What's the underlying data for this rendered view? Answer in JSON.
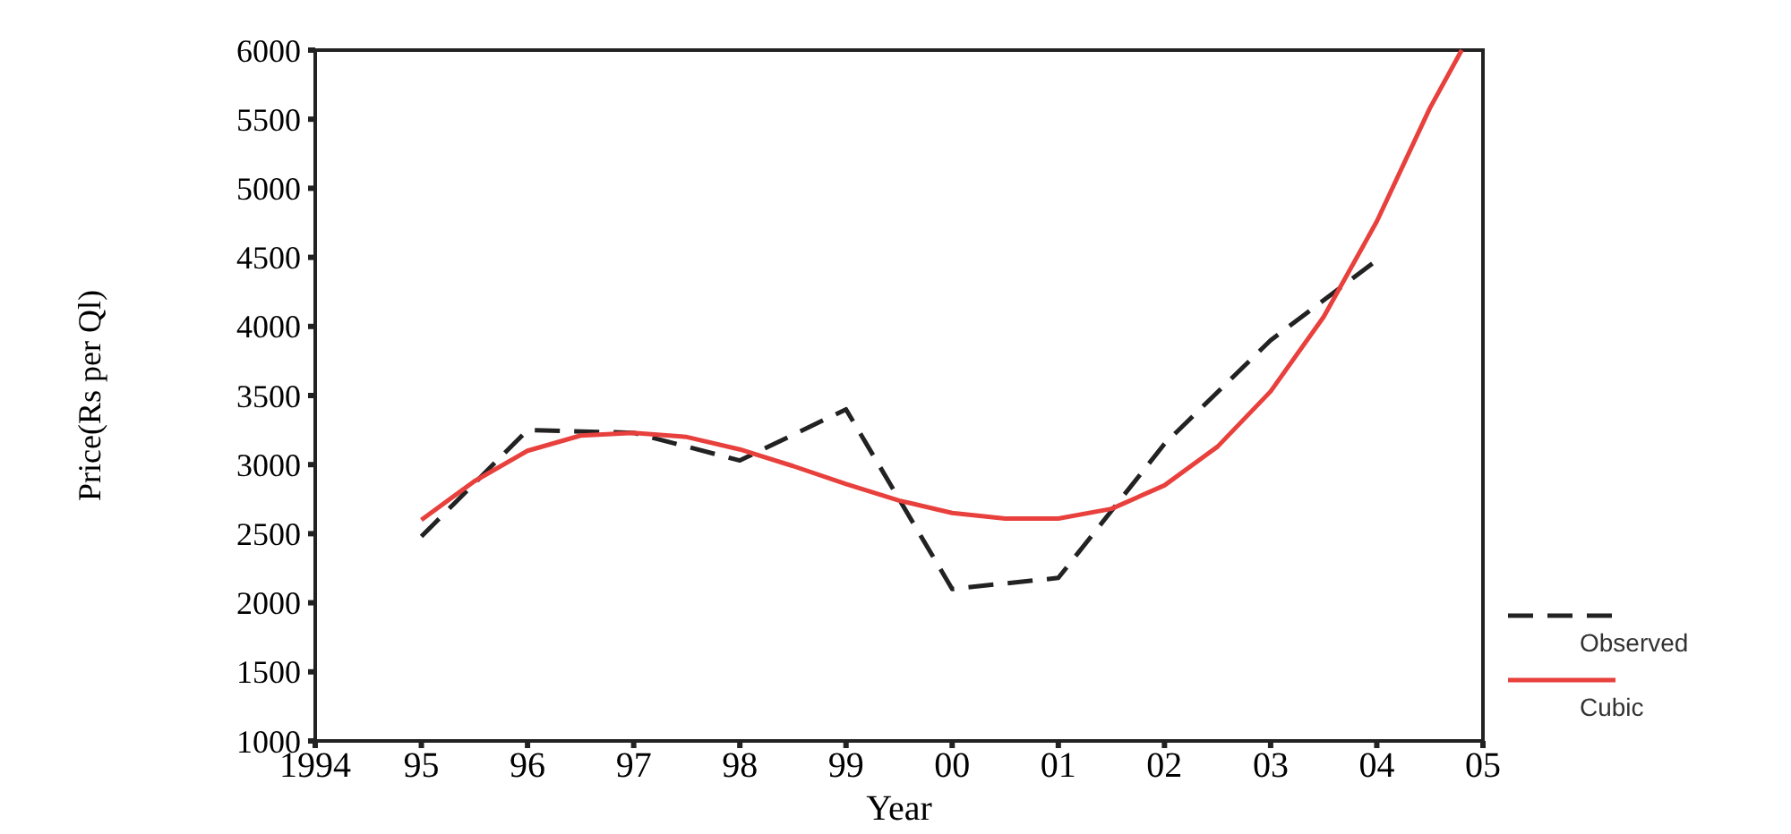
{
  "chart_data": {
    "type": "line",
    "xlabel": "Year",
    "ylabel": "Price(Rs per Ql)",
    "xlim": [
      1994,
      2005
    ],
    "ylim": [
      1000,
      6000
    ],
    "xticks": [
      1994,
      {
        "value": 1995,
        "label": "95"
      },
      {
        "value": 1996,
        "label": "96"
      },
      {
        "value": 1997,
        "label": "97"
      },
      {
        "value": 1998,
        "label": "98"
      },
      {
        "value": 1999,
        "label": "99"
      },
      {
        "value": 2000,
        "label": "00"
      },
      {
        "value": 2001,
        "label": "01"
      },
      {
        "value": 2002,
        "label": "02"
      },
      {
        "value": 2003,
        "label": "03"
      },
      {
        "value": 2004,
        "label": "04"
      },
      {
        "value": 2005,
        "label": "05"
      }
    ],
    "yticks": [
      1000,
      1500,
      2000,
      2500,
      3000,
      3500,
      4000,
      4500,
      5000,
      5500,
      6000
    ],
    "grid": false,
    "legend": "bottom right",
    "series": [
      {
        "name": "Observed",
        "color": "#222222",
        "line_style": "dashed",
        "x": [
          1995,
          1996,
          1997,
          1998,
          1999,
          2000,
          2001,
          2002,
          2003,
          2004
        ],
        "values": [
          2480,
          3250,
          3230,
          3030,
          3400,
          2100,
          2180,
          3150,
          3900,
          4480
        ]
      },
      {
        "name": "Cubic",
        "color": "#e8403c",
        "line_style": "solid",
        "x": [
          1995,
          1995.5,
          1996,
          1996.5,
          1997,
          1997.5,
          1998,
          1998.5,
          1999,
          1999.5,
          2000,
          2000.5,
          2001,
          2001.5,
          2002,
          2002.5,
          2003,
          2003.5,
          2004,
          2004.5,
          2004.8
        ],
        "values": [
          2600,
          2880,
          3100,
          3210,
          3230,
          3200,
          3110,
          2990,
          2860,
          2740,
          2650,
          2610,
          2610,
          2680,
          2850,
          3130,
          3530,
          4070,
          4760,
          5580,
          6000
        ]
      }
    ]
  }
}
